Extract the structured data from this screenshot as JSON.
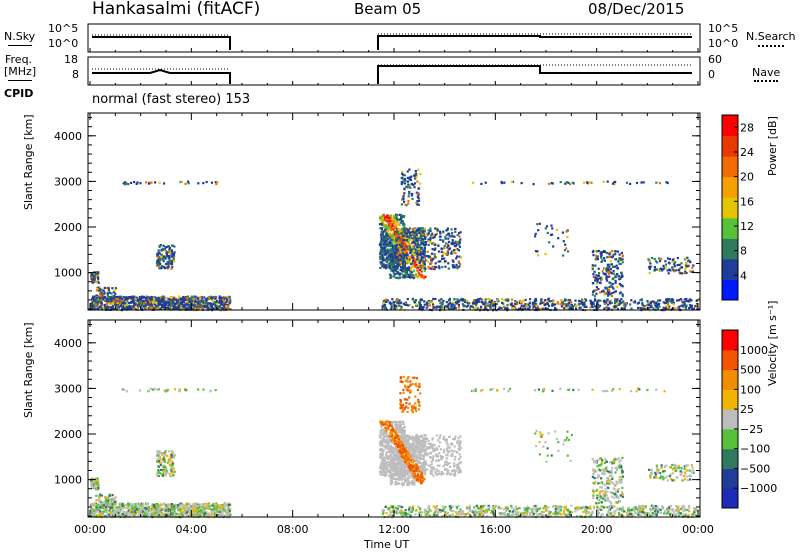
{
  "header": {
    "station": "Hankasalmi (fitACF)",
    "beam": "Beam 05",
    "date": "08/Dec/2015"
  },
  "summary": {
    "nsky_label": "N.Sky",
    "nsearch_label": "N.Search",
    "freq_label": "Freq.",
    "freq_unit": "[MHz]",
    "nave_label": "Nave",
    "cpid_label": "CPID",
    "cpid_value": "normal (fast stereo) 153",
    "noise_ticks_left": [
      "10^5",
      "10^0"
    ],
    "noise_ticks_right": [
      "10^5",
      "10^0"
    ],
    "freq_ticks": [
      "18",
      "8"
    ],
    "nave_ticks": [
      "60",
      "0"
    ]
  },
  "colors": {
    "power": [
      "#0019ff",
      "#1f3d99",
      "#2f7a5e",
      "#55c23a",
      "#e6c400",
      "#f5a000",
      "#f26b00",
      "#e83a00",
      "#ff0000"
    ],
    "velocity": [
      "#ff0000",
      "#f35400",
      "#f28c00",
      "#f2b400",
      "#bdbdbd",
      "#55c23a",
      "#2f7a5e",
      "#1f3d99",
      "#1e2bb8"
    ],
    "grey": "#bdbdbd"
  },
  "chart_data": [
    {
      "type": "heatmap",
      "name": "power",
      "ylabel": "Slant Range [km]",
      "xlabel": "Time UT",
      "x_ticks": [
        "00:00",
        "04:00",
        "08:00",
        "12:00",
        "16:00",
        "20:00",
        "00:00"
      ],
      "y_ticks": [
        "1000",
        "2000",
        "3000",
        "4000"
      ],
      "ylim": [
        180,
        4500
      ],
      "colorbar_label": "Power [dB]",
      "colorbar_ticks": [
        "4",
        "8",
        "12",
        "16",
        "20",
        "24",
        "28"
      ],
      "colorbar_range": [
        0,
        30
      ]
    },
    {
      "type": "heatmap",
      "name": "velocity",
      "ylabel": "Slant Range [km]",
      "xlabel": "Time UT",
      "x_ticks": [
        "00:00",
        "04:00",
        "08:00",
        "12:00",
        "16:00",
        "20:00",
        "00:00"
      ],
      "y_ticks": [
        "1000",
        "2000",
        "3000",
        "4000"
      ],
      "ylim": [
        180,
        4500
      ],
      "colorbar_label": "Velocity [m s⁻¹]",
      "colorbar_ticks": [
        "1000",
        "500",
        "100",
        "25",
        "−25",
        "−100",
        "−500",
        "−1000"
      ]
    }
  ]
}
